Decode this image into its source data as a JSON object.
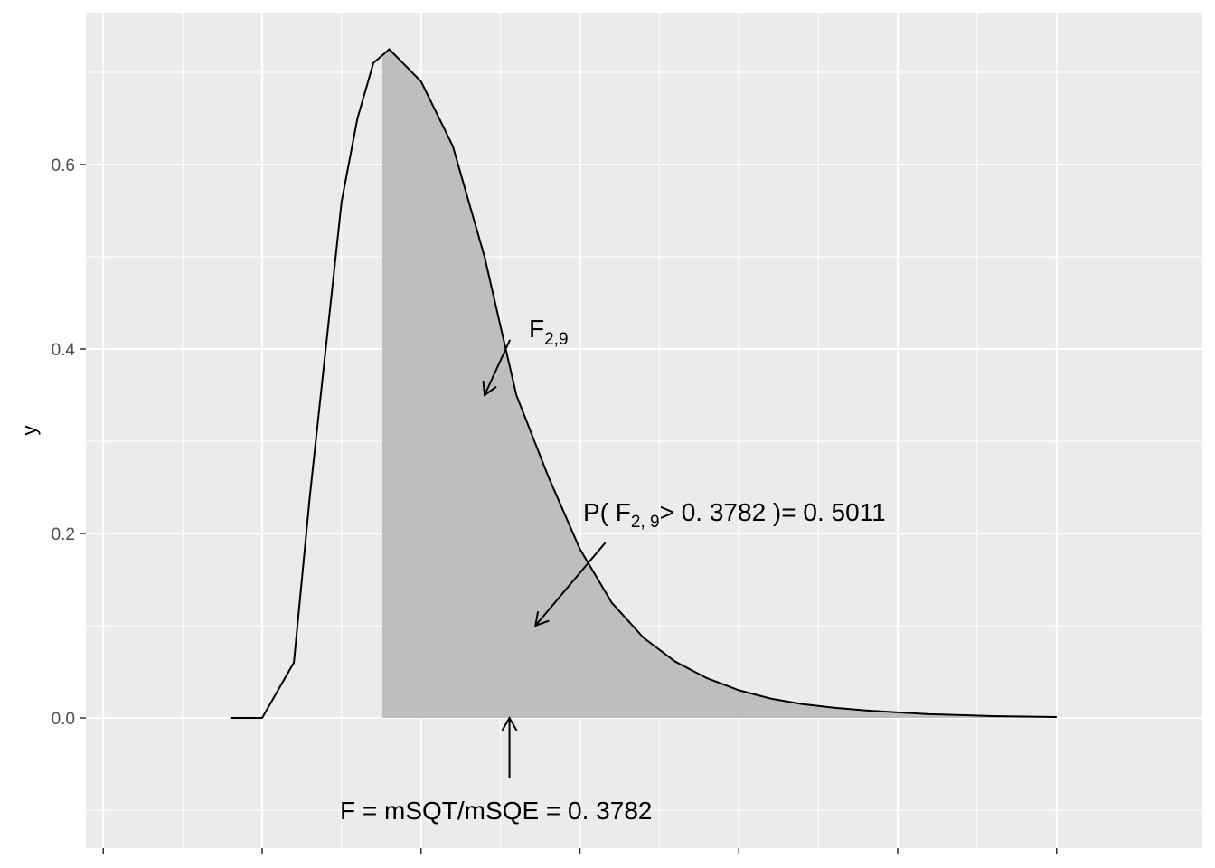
{
  "chart_data": {
    "type": "area",
    "title": "",
    "xlabel": "",
    "ylabel": "y",
    "xlim": [
      -0.1,
      2.5
    ],
    "ylim": [
      -0.14,
      0.76
    ],
    "x_breaks": [
      -0.5,
      0.0,
      0.5,
      1.0,
      1.5,
      2.0,
      2.5
    ],
    "x_tick_labels_shown": false,
    "y_breaks": [
      0.0,
      0.2,
      0.4,
      0.6
    ],
    "y_tick_labels": [
      "0.0",
      "0.2",
      "0.4",
      "0.6"
    ],
    "grid": true,
    "legend": "none",
    "series": [
      {
        "x": [
          -0.1,
          0.0,
          0.1,
          0.15,
          0.2,
          0.25,
          0.3,
          0.35,
          0.4,
          0.5,
          0.6,
          0.7,
          0.8,
          0.9,
          1.0,
          1.1,
          1.2,
          1.3,
          1.4,
          1.5,
          1.6,
          1.7,
          1.8,
          1.9,
          2.0,
          2.1,
          2.2,
          2.3,
          2.4,
          2.5
        ],
        "y": [
          0.0,
          0.0,
          0.06,
          0.24,
          0.4,
          0.56,
          0.65,
          0.71,
          0.725,
          0.69,
          0.62,
          0.5,
          0.35,
          0.262,
          0.183,
          0.125,
          0.087,
          0.061,
          0.043,
          0.03,
          0.021,
          0.015,
          0.011,
          0.008,
          0.006,
          0.004,
          0.003,
          0.002,
          0.0015,
          0.001
        ]
      }
    ],
    "shaded_region": {
      "from": 0.3782,
      "to": 2.5,
      "color": "#bebebe"
    },
    "annotations": {
      "curve_label": {
        "text": "F",
        "sub": "2,9",
        "arrow_from": [
          0.78,
          0.41
        ],
        "arrow_to": [
          0.7,
          0.35
        ]
      },
      "p_label": {
        "text1": "P( F",
        "sub": "2, 9",
        "text2": "> 0. 3782 )= 0. 5011",
        "arrow_from": [
          1.08,
          0.19
        ],
        "arrow_to": [
          0.86,
          0.1
        ]
      },
      "f_label": {
        "text": "F = mSQT/mSQE = 0. 3782",
        "arrow_from": [
          0.7782,
          -0.065
        ],
        "arrow_to": [
          0.7782,
          0.0
        ]
      }
    },
    "colors": {
      "panel_bg": "#ebebeb",
      "grid": "#ffffff",
      "line": "#000000",
      "shade": "#bebebe",
      "tick_text": "#4d4d4d"
    }
  }
}
